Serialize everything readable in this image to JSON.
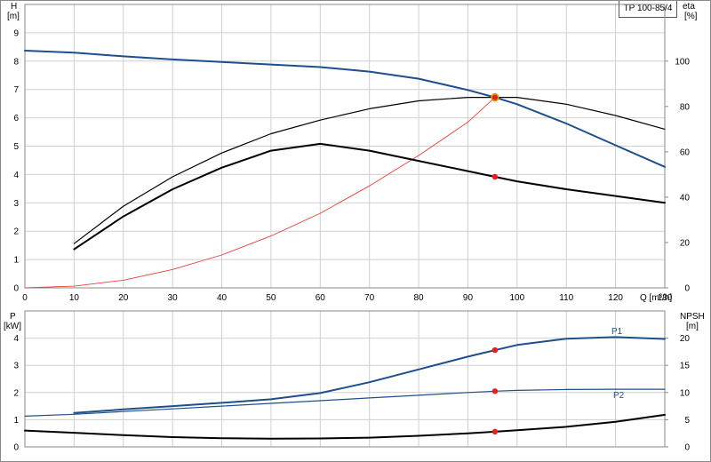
{
  "chart_data": [
    {
      "type": "line",
      "title": "TP 100-85/4",
      "xlabel": "Q [m³/h]",
      "ylabel_left": "H",
      "ylabel_left_unit": "[m]",
      "ylabel_right": "eta",
      "ylabel_right_unit": "[%]",
      "xlim": [
        0,
        130
      ],
      "ylim_left": [
        0,
        10
      ],
      "ylim_right": [
        0,
        125
      ],
      "x_ticks": [
        0,
        10,
        20,
        30,
        40,
        50,
        60,
        70,
        80,
        90,
        100,
        110,
        120,
        130
      ],
      "y_ticks_left": [
        0,
        1,
        2,
        3,
        4,
        5,
        6,
        7,
        8,
        9
      ],
      "y_ticks_right": [
        0,
        20,
        40,
        60,
        80,
        100
      ],
      "grid": true,
      "series": [
        {
          "axis": "left",
          "color": "#1f4e8c",
          "width": 2,
          "points": [
            [
              0,
              8.37
            ],
            [
              10,
              8.3
            ],
            [
              20,
              8.17
            ],
            [
              30,
              8.06
            ],
            [
              40,
              7.97
            ],
            [
              50,
              7.88
            ],
            [
              60,
              7.79
            ],
            [
              70,
              7.63
            ],
            [
              80,
              7.38
            ],
            [
              90,
              6.98
            ],
            [
              95.5,
              6.72
            ],
            [
              100,
              6.48
            ],
            [
              110,
              5.8
            ],
            [
              120,
              5.03
            ],
            [
              130,
              4.27
            ]
          ]
        },
        {
          "axis": "left",
          "color": "#e8403a",
          "width": 0.9,
          "points": [
            [
              0,
              0
            ],
            [
              10,
              0.06
            ],
            [
              20,
              0.27
            ],
            [
              30,
              0.65
            ],
            [
              40,
              1.16
            ],
            [
              50,
              1.83
            ],
            [
              60,
              2.63
            ],
            [
              70,
              3.6
            ],
            [
              80,
              4.67
            ],
            [
              90,
              5.85
            ],
            [
              95.5,
              6.72
            ]
          ]
        },
        {
          "axis": "right",
          "color": "#000000",
          "width": 1.2,
          "points": [
            [
              10,
              19.5
            ],
            [
              20,
              36
            ],
            [
              30,
              49
            ],
            [
              40,
              59.5
            ],
            [
              50,
              68
            ],
            [
              60,
              74
            ],
            [
              70,
              79
            ],
            [
              80,
              82.5
            ],
            [
              90,
              84
            ],
            [
              95.5,
              84
            ],
            [
              100,
              84
            ],
            [
              110,
              81
            ],
            [
              120,
              76
            ],
            [
              130,
              70
            ]
          ]
        },
        {
          "axis": "right",
          "color": "#000000",
          "width": 2,
          "points": [
            [
              10,
              17
            ],
            [
              20,
              31.5
            ],
            [
              30,
              43.5
            ],
            [
              40,
              53
            ],
            [
              50,
              60.5
            ],
            [
              60,
              63.5
            ],
            [
              70,
              60.5
            ],
            [
              80,
              56
            ],
            [
              90,
              51.5
            ],
            [
              95.5,
              49
            ],
            [
              100,
              47
            ],
            [
              110,
              43.5
            ],
            [
              120,
              40.5
            ],
            [
              130,
              37.5
            ]
          ]
        }
      ],
      "markers": [
        {
          "axis": "left",
          "x": 95.5,
          "y": 6.72,
          "color": "#f5c400"
        },
        {
          "axis": "right",
          "x": 95.5,
          "y": 84,
          "color": "#e81e1e"
        },
        {
          "axis": "right",
          "x": 95.5,
          "y": 49,
          "color": "#e81e1e"
        }
      ]
    },
    {
      "type": "line",
      "ylabel_left": "P",
      "ylabel_left_unit": "[kW]",
      "ylabel_right": "NPSH",
      "ylabel_right_unit": "[m]",
      "xlim": [
        0,
        130
      ],
      "ylim_left": [
        0,
        5
      ],
      "ylim_right": [
        0,
        25
      ],
      "y_ticks_left": [
        0,
        1,
        2,
        3,
        4
      ],
      "y_ticks_right": [
        0,
        5,
        10,
        15,
        20
      ],
      "grid": true,
      "series": [
        {
          "name": "P1",
          "axis": "left",
          "color": "#1f4e8c",
          "width": 2,
          "points": [
            [
              10,
              1.25
            ],
            [
              20,
              1.38
            ],
            [
              30,
              1.5
            ],
            [
              40,
              1.62
            ],
            [
              50,
              1.75
            ],
            [
              60,
              1.98
            ],
            [
              70,
              2.38
            ],
            [
              80,
              2.85
            ],
            [
              90,
              3.32
            ],
            [
              95.5,
              3.56
            ],
            [
              100,
              3.75
            ],
            [
              110,
              3.98
            ],
            [
              120,
              4.04
            ],
            [
              130,
              3.97
            ]
          ]
        },
        {
          "name": "P2",
          "axis": "left",
          "color": "#1f4e8c",
          "width": 1.2,
          "points": [
            [
              0,
              1.13
            ],
            [
              10,
              1.2
            ],
            [
              20,
              1.3
            ],
            [
              30,
              1.4
            ],
            [
              40,
              1.5
            ],
            [
              50,
              1.6
            ],
            [
              60,
              1.7
            ],
            [
              70,
              1.8
            ],
            [
              80,
              1.9
            ],
            [
              90,
              2.0
            ],
            [
              95.5,
              2.05
            ],
            [
              100,
              2.08
            ],
            [
              110,
              2.11
            ],
            [
              120,
              2.12
            ],
            [
              130,
              2.12
            ]
          ]
        },
        {
          "axis": "right",
          "color": "#000000",
          "width": 2,
          "points": [
            [
              0,
              3.0
            ],
            [
              10,
              2.6
            ],
            [
              20,
              2.15
            ],
            [
              30,
              1.8
            ],
            [
              40,
              1.6
            ],
            [
              50,
              1.5
            ],
            [
              60,
              1.55
            ],
            [
              70,
              1.7
            ],
            [
              80,
              2.05
            ],
            [
              90,
              2.5
            ],
            [
              95.5,
              2.8
            ],
            [
              100,
              3.05
            ],
            [
              110,
              3.7
            ],
            [
              120,
              4.6
            ],
            [
              130,
              5.9
            ]
          ]
        }
      ],
      "markers": [
        {
          "axis": "left",
          "x": 95.5,
          "y": 3.56,
          "color": "#e81e1e"
        },
        {
          "axis": "left",
          "x": 95.5,
          "y": 2.05,
          "color": "#e81e1e"
        },
        {
          "axis": "right",
          "x": 95.5,
          "y": 2.8,
          "color": "#e81e1e"
        }
      ]
    }
  ]
}
